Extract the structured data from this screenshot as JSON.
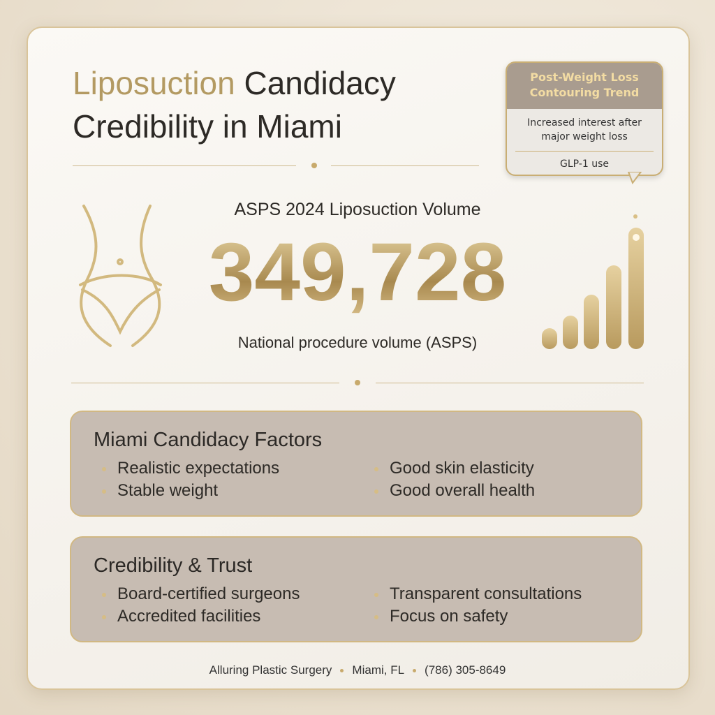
{
  "header": {
    "title_highlight": "Liposuction",
    "title_rest": "Candidacy Credibility in Miami"
  },
  "callout": {
    "title": "Post-Weight Loss Contouring Trend",
    "body": "Increased interest after major weight loss",
    "footer": "GLP-1 use"
  },
  "stat": {
    "label": "ASPS 2024 Liposuction Volume",
    "value": "349,728",
    "caption": "National procedure volume (ASPS)"
  },
  "panels": [
    {
      "title": "Miami Candidacy Factors",
      "items": [
        "Realistic expectations",
        "Good skin elasticity",
        "Stable weight",
        "Good overall health"
      ]
    },
    {
      "title": "Credibility & Trust",
      "items": [
        "Board-certified surgeons",
        "Transparent consultations",
        "Accredited facilities",
        "Focus on safety"
      ]
    }
  ],
  "footer": [
    "Alluring Plastic Surgery",
    "Miami, FL",
    "(786) 305-8649"
  ]
}
